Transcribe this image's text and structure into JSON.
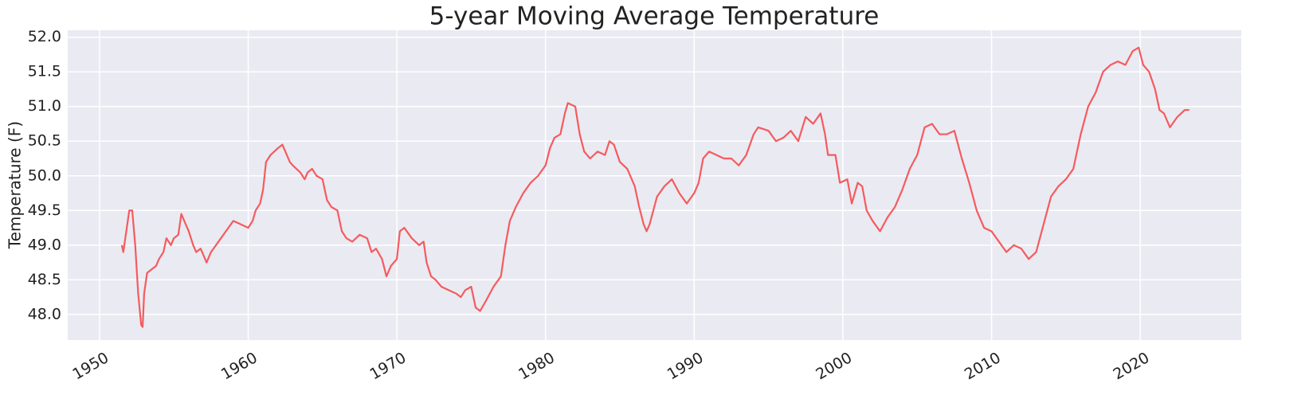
{
  "chart_data": {
    "type": "line",
    "title": "5-year Moving Average Temperature",
    "y_label": "Temperature (F)",
    "color": "#f45b5e",
    "grid": true,
    "xlim": [
      1947.86,
      2026.8
    ],
    "xticks": [
      1950,
      1960,
      1970,
      1980,
      1990,
      2000,
      2010,
      2020
    ],
    "ylim": [
      47.63,
      52.1
    ],
    "yticks": [
      {
        "value": 48,
        "label": "48.0"
      },
      48.5,
      {
        "value": 49,
        "label": "49.0"
      },
      49.5,
      {
        "value": 50,
        "label": "50.0"
      },
      50.5,
      {
        "value": 51,
        "label": "51.0"
      },
      51.5,
      {
        "value": 52,
        "label": "52.0"
      }
    ],
    "x": [
      1951.5,
      1951.6,
      1951.8,
      1952.0,
      1952.2,
      1952.4,
      1952.6,
      1952.8,
      1952.9,
      1953.0,
      1953.2,
      1953.5,
      1953.8,
      1954.0,
      1954.3,
      1954.5,
      1954.8,
      1955.0,
      1955.3,
      1955.5,
      1955.8,
      1956.0,
      1956.3,
      1956.5,
      1956.8,
      1957.0,
      1957.2,
      1957.5,
      1958.0,
      1958.5,
      1959.0,
      1959.5,
      1960.0,
      1960.3,
      1960.5,
      1960.8,
      1961.0,
      1961.2,
      1961.5,
      1962.0,
      1962.3,
      1962.5,
      1962.8,
      1963.0,
      1963.5,
      1963.8,
      1964.0,
      1964.3,
      1964.6,
      1965.0,
      1965.3,
      1965.6,
      1966.0,
      1966.3,
      1966.6,
      1967.0,
      1967.5,
      1968.0,
      1968.3,
      1968.6,
      1969.0,
      1969.3,
      1969.6,
      1970.0,
      1970.2,
      1970.5,
      1971.0,
      1971.5,
      1971.8,
      1972.0,
      1972.3,
      1972.6,
      1973.0,
      1973.5,
      1974.0,
      1974.3,
      1974.6,
      1975.0,
      1975.3,
      1975.6,
      1976.0,
      1976.5,
      1977.0,
      1977.3,
      1977.6,
      1978.0,
      1978.5,
      1979.0,
      1979.5,
      1980.0,
      1980.3,
      1980.6,
      1981.0,
      1981.3,
      1981.5,
      1982.0,
      1982.3,
      1982.6,
      1983.0,
      1983.5,
      1984.0,
      1984.3,
      1984.6,
      1985.0,
      1985.5,
      1986.0,
      1986.3,
      1986.6,
      1986.8,
      1987.0,
      1987.5,
      1988.0,
      1988.5,
      1989.0,
      1989.5,
      1990.0,
      1990.3,
      1990.6,
      1991.0,
      1991.5,
      1992.0,
      1992.5,
      1993.0,
      1993.5,
      1994.0,
      1994.3,
      1995.0,
      1995.5,
      1996.0,
      1996.5,
      1997.0,
      1997.5,
      1998.0,
      1998.5,
      1998.8,
      1999.0,
      1999.5,
      1999.8,
      2000.3,
      2000.6,
      2001.0,
      2001.3,
      2001.6,
      2002.0,
      2002.5,
      2003.0,
      2003.5,
      2004.0,
      2004.5,
      2005.0,
      2005.5,
      2006.0,
      2006.5,
      2007.0,
      2007.5,
      2008.0,
      2008.5,
      2009.0,
      2009.5,
      2010.0,
      2010.5,
      2011.0,
      2011.5,
      2012.0,
      2012.5,
      2013.0,
      2013.5,
      2014.0,
      2014.5,
      2015.0,
      2015.5,
      2016.0,
      2016.5,
      2017.0,
      2017.5,
      2018.0,
      2018.5,
      2019.0,
      2019.5,
      2019.9,
      2020.2,
      2020.6,
      2021.0,
      2021.3,
      2021.6,
      2022.0,
      2022.5,
      2023.0,
      2023.3
    ],
    "values": [
      49.0,
      48.9,
      49.2,
      49.5,
      49.5,
      49.0,
      48.3,
      47.85,
      47.82,
      48.3,
      48.6,
      48.65,
      48.7,
      48.8,
      48.9,
      49.1,
      49.0,
      49.1,
      49.15,
      49.45,
      49.3,
      49.2,
      49.0,
      48.9,
      48.95,
      48.85,
      48.75,
      48.9,
      49.05,
      49.2,
      49.35,
      49.3,
      49.25,
      49.35,
      49.5,
      49.6,
      49.8,
      50.2,
      50.3,
      50.4,
      50.45,
      50.35,
      50.2,
      50.15,
      50.05,
      49.95,
      50.05,
      50.1,
      50.0,
      49.95,
      49.65,
      49.55,
      49.5,
      49.2,
      49.1,
      49.05,
      49.15,
      49.1,
      48.9,
      48.95,
      48.8,
      48.55,
      48.7,
      48.8,
      49.2,
      49.25,
      49.1,
      49.0,
      49.05,
      48.75,
      48.55,
      48.5,
      48.4,
      48.35,
      48.3,
      48.25,
      48.35,
      48.4,
      48.1,
      48.05,
      48.2,
      48.4,
      48.55,
      49.0,
      49.35,
      49.55,
      49.75,
      49.9,
      50.0,
      50.15,
      50.4,
      50.55,
      50.6,
      50.9,
      51.05,
      51.0,
      50.6,
      50.35,
      50.25,
      50.35,
      50.3,
      50.5,
      50.45,
      50.2,
      50.1,
      49.85,
      49.55,
      49.3,
      49.2,
      49.3,
      49.7,
      49.85,
      49.95,
      49.75,
      49.6,
      49.75,
      49.9,
      50.25,
      50.35,
      50.3,
      50.25,
      50.25,
      50.15,
      50.3,
      50.6,
      50.7,
      50.65,
      50.5,
      50.55,
      50.65,
      50.5,
      50.85,
      50.75,
      50.9,
      50.6,
      50.3,
      50.3,
      49.9,
      49.95,
      49.6,
      49.9,
      49.85,
      49.5,
      49.35,
      49.2,
      49.4,
      49.55,
      49.8,
      50.1,
      50.3,
      50.7,
      50.75,
      50.6,
      50.6,
      50.65,
      50.25,
      49.9,
      49.5,
      49.25,
      49.2,
      49.05,
      48.9,
      49.0,
      48.95,
      48.8,
      48.9,
      49.3,
      49.7,
      49.85,
      49.95,
      50.1,
      50.6,
      51.0,
      51.2,
      51.5,
      51.6,
      51.65,
      51.6,
      51.8,
      51.85,
      51.6,
      51.5,
      51.25,
      50.95,
      50.9,
      50.7,
      50.85,
      50.95,
      50.95
    ]
  }
}
